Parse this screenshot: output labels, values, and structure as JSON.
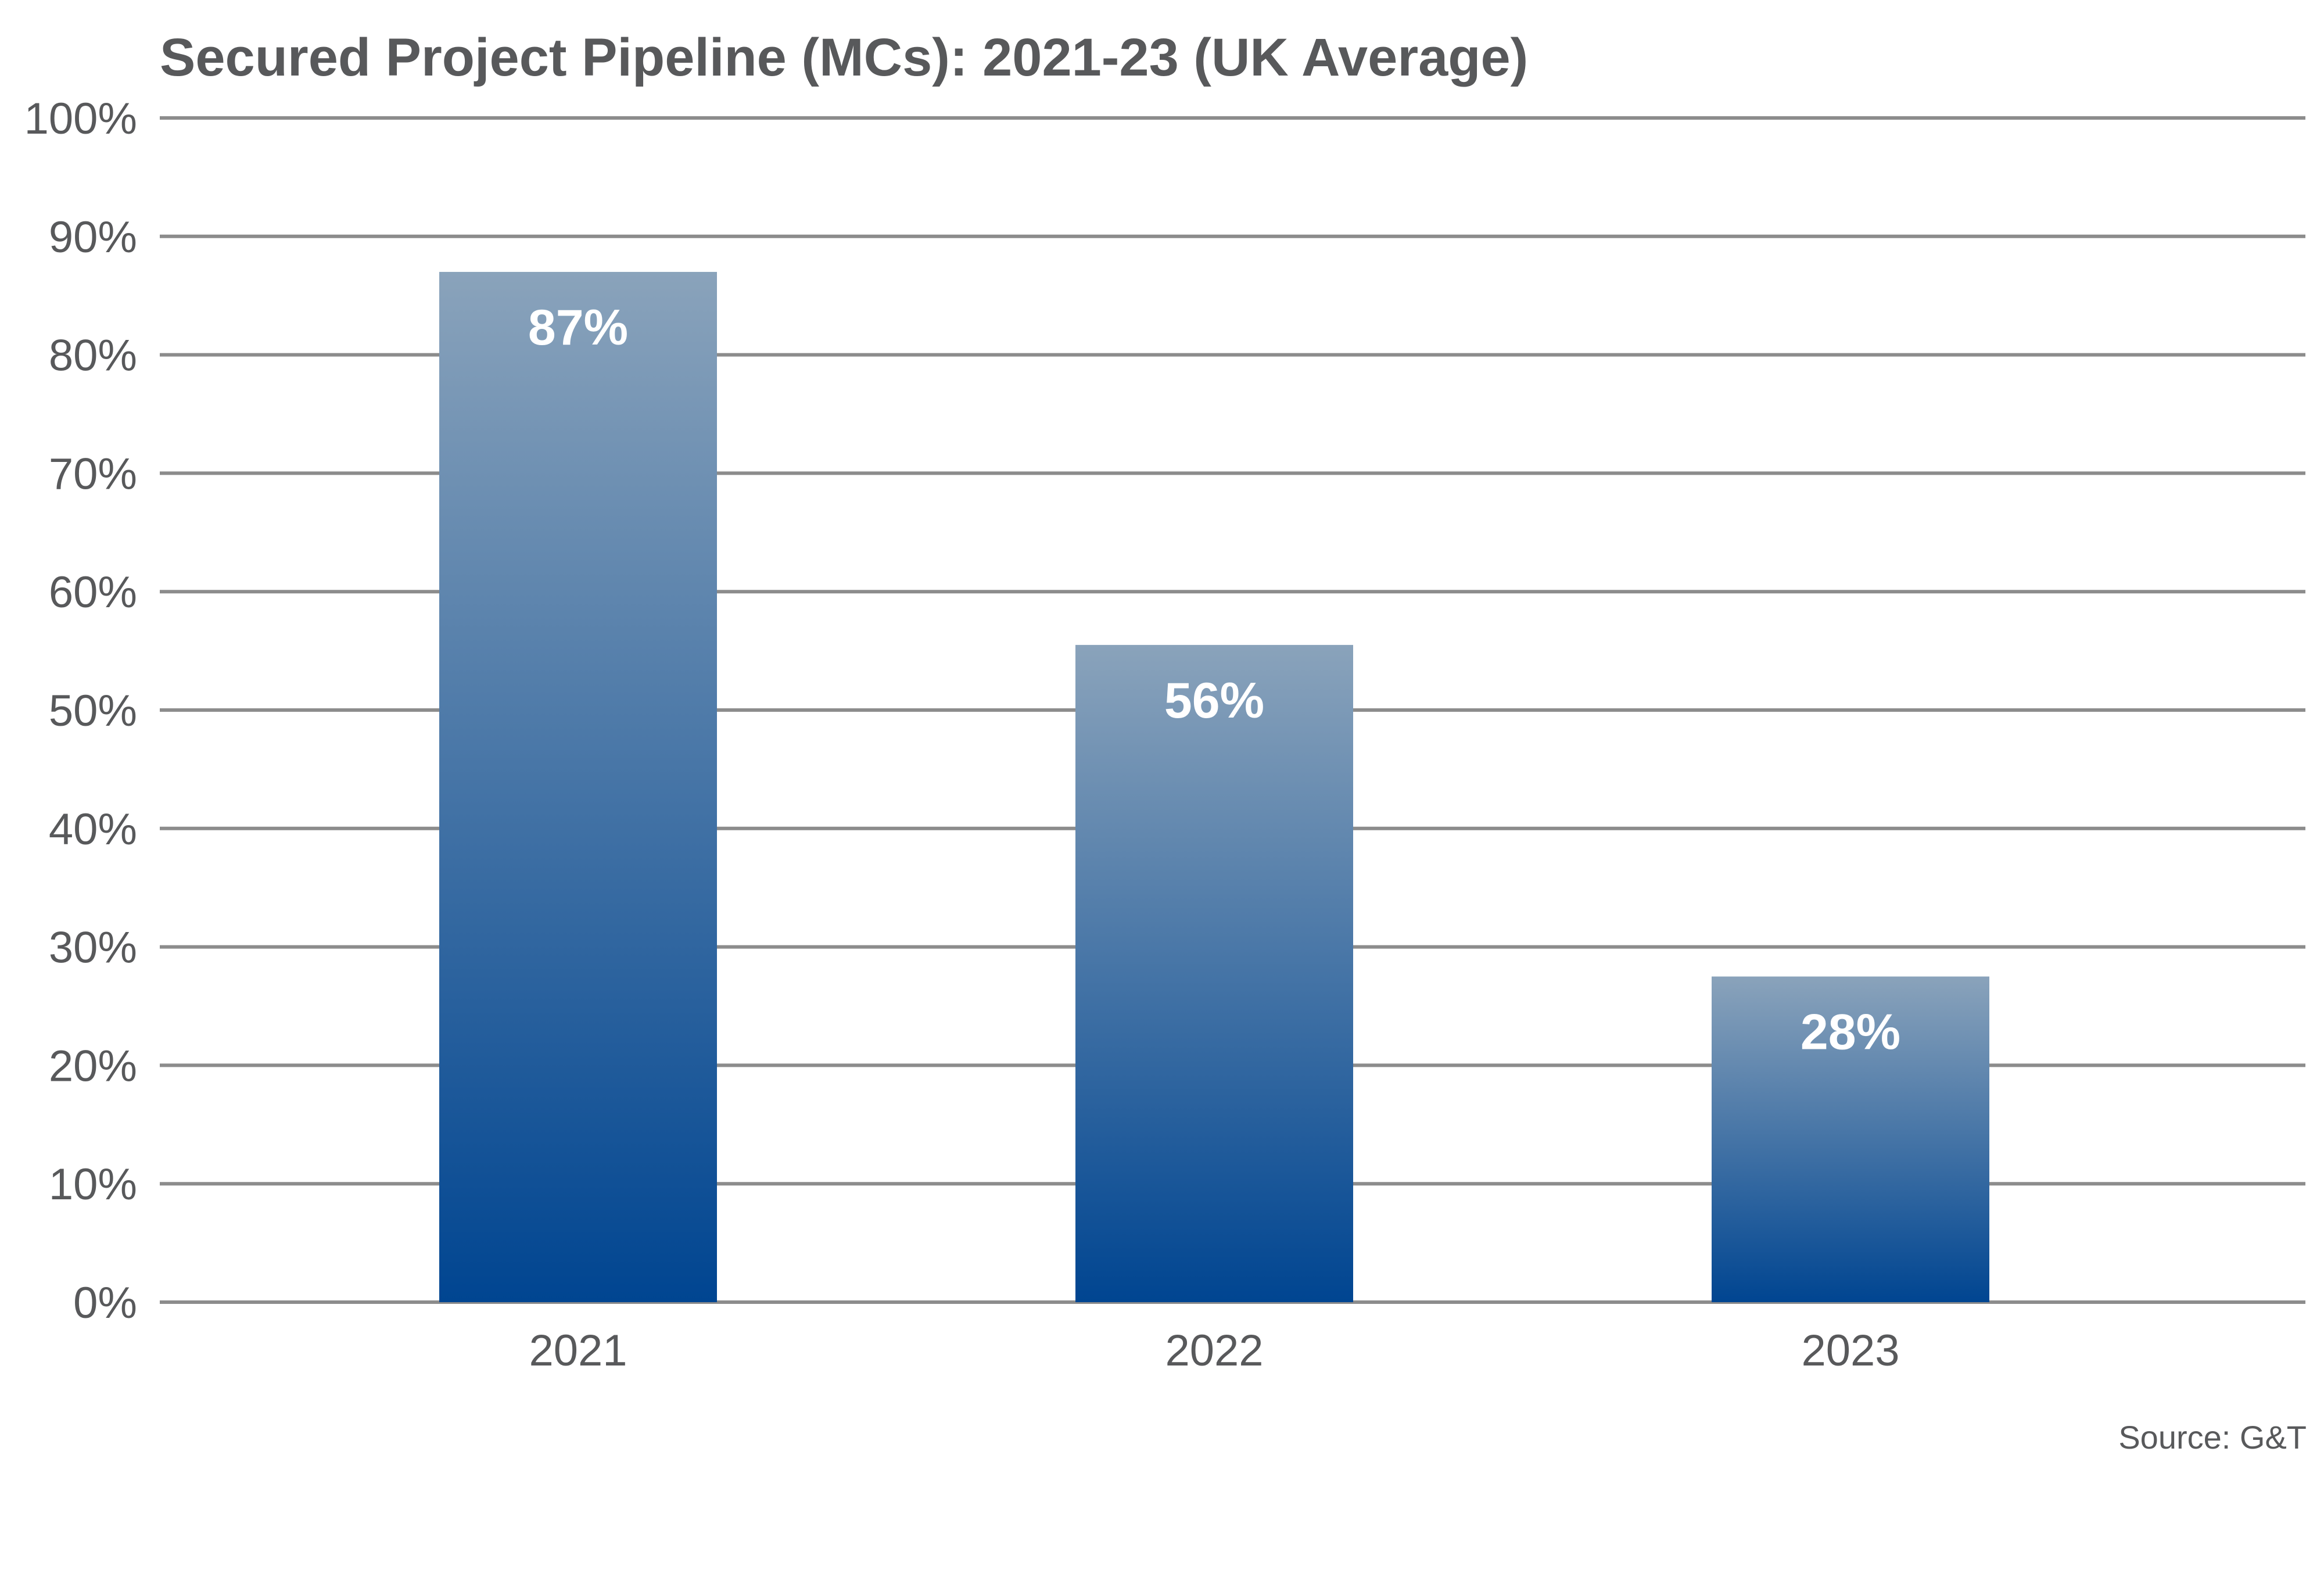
{
  "chart_data": {
    "type": "bar",
    "title": "Secured Project Pipeline (MCs): 2021-23 (UK Average)",
    "categories": [
      "2021",
      "2022",
      "2023"
    ],
    "values": [
      87,
      55.5,
      27.5
    ],
    "data_labels": [
      "87%",
      "56%",
      "28%"
    ],
    "xlabel": "",
    "ylabel": "",
    "ylim": [
      0,
      100
    ],
    "yticks": [
      0,
      10,
      20,
      30,
      40,
      50,
      60,
      70,
      80,
      90,
      100
    ],
    "ytick_labels": [
      "0%",
      "10%",
      "20%",
      "30%",
      "40%",
      "50%",
      "60%",
      "70%",
      "80%",
      "90%",
      "100%"
    ],
    "grid": true,
    "legend": "none",
    "source": "Source: G&T",
    "colors": {
      "bar_top": "#8aa3bb",
      "bar_bottom": "#004591",
      "grid": "#8c8c8c",
      "text": "#58595b"
    }
  }
}
